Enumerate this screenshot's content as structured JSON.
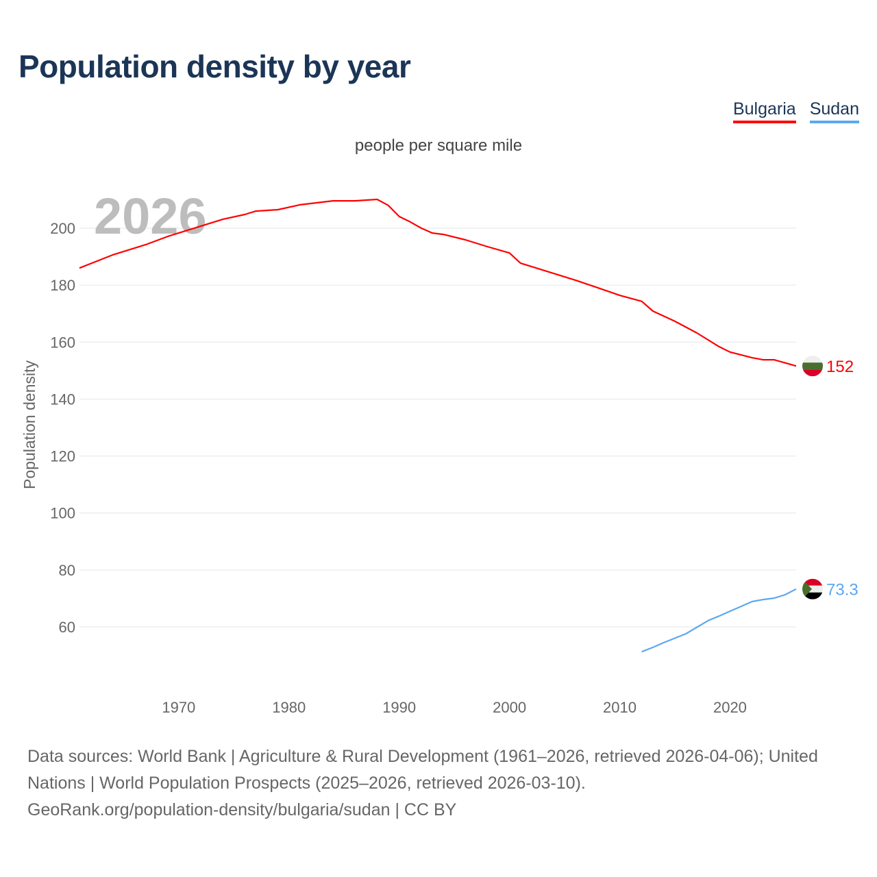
{
  "title": "Population density by year",
  "legend": [
    {
      "name": "Bulgaria",
      "color": "#ff0000"
    },
    {
      "name": "Sudan",
      "color": "#5ca8f0"
    }
  ],
  "source_lines": [
    "Data sources: World Bank | Agriculture & Rural Development (1961–2026, retrieved 2026-04-06); United",
    "Nations | World Population Prospects (2025–2026, retrieved 2026-03-10).",
    "GeoRank.org/population-density/bulgaria/sudan | CC BY"
  ],
  "chart_data": {
    "type": "line",
    "title": "Population density by year",
    "subtitle": "people per square mile",
    "ylabel": "Population density",
    "xlabel": "",
    "year_watermark": "2026",
    "xlim": [
      1961,
      2026
    ],
    "ylim": [
      42,
      214
    ],
    "x_ticks": [
      1970,
      1980,
      1990,
      2000,
      2010,
      2020
    ],
    "y_ticks": [
      60,
      80,
      100,
      120,
      140,
      160,
      180,
      200
    ],
    "grid": true,
    "legend_position": "top-right",
    "series": [
      {
        "name": "Bulgaria",
        "color": "#ff0000",
        "end_label": "152",
        "flag": "bulgaria",
        "x": [
          1961,
          1964,
          1967,
          1969,
          1971,
          1974,
          1976,
          1977,
          1979,
          1981,
          1984,
          1986,
          1988,
          1989,
          1990,
          1991,
          1992,
          1993,
          1994,
          1996,
          1998,
          2000,
          2001,
          2002,
          2004,
          2006,
          2008,
          2010,
          2012,
          2013,
          2015,
          2017,
          2019,
          2020,
          2022,
          2023,
          2024,
          2026
        ],
        "y": [
          186.0,
          190.6,
          194.2,
          197.1,
          199.5,
          203.1,
          204.8,
          206.0,
          206.5,
          208.2,
          209.6,
          209.6,
          210.1,
          208.0,
          204.1,
          202.2,
          200.0,
          198.3,
          197.8,
          195.9,
          193.5,
          191.3,
          187.7,
          186.5,
          184.1,
          181.7,
          179.1,
          176.4,
          174.3,
          170.9,
          167.3,
          163.2,
          158.4,
          156.5,
          154.5,
          153.8,
          153.8,
          151.6
        ]
      },
      {
        "name": "Sudan",
        "color": "#5ca8f0",
        "end_label": "73.3",
        "flag": "sudan",
        "x": [
          2012,
          2013,
          2014,
          2016,
          2018,
          2019,
          2020,
          2021,
          2022,
          2023,
          2024,
          2025,
          2026
        ],
        "y": [
          51.3,
          52.8,
          54.5,
          57.6,
          62.2,
          63.8,
          65.5,
          67.2,
          68.9,
          69.6,
          70.1,
          71.3,
          73.3
        ]
      }
    ]
  }
}
